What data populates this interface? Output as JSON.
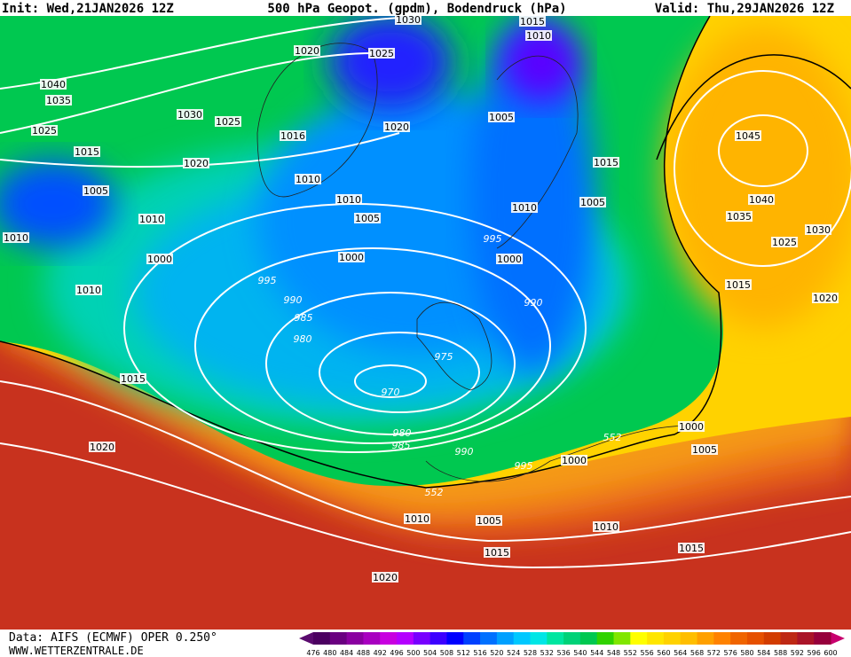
{
  "header": {
    "init": "Init: Wed,21JAN2026 12Z",
    "title": "500 hPa Geopot. (gpdm), Bodendruck (hPa)",
    "valid": "Valid: Thu,29JAN2026 12Z"
  },
  "footer": {
    "source": "Data: AIFS (ECMWF) OPER 0.250°",
    "website": "WWW.WETTERZENTRALE.DE"
  },
  "colorbar": {
    "labels": [
      476,
      480,
      484,
      488,
      492,
      496,
      500,
      504,
      508,
      512,
      516,
      520,
      524,
      528,
      532,
      536,
      540,
      544,
      548,
      552,
      556,
      560,
      564,
      568,
      572,
      576,
      580,
      584,
      588,
      592,
      596,
      600
    ],
    "colors": [
      "#4b0060",
      "#6a0080",
      "#8a00a0",
      "#a800c0",
      "#c800e0",
      "#b400ff",
      "#7800ff",
      "#3c00ff",
      "#0000ff",
      "#0040ff",
      "#0070ff",
      "#00a0ff",
      "#00c8ff",
      "#00e6e6",
      "#00e6a0",
      "#00d278",
      "#00c850",
      "#30d200",
      "#80e600",
      "#ffff00",
      "#ffe600",
      "#ffd200",
      "#ffbe00",
      "#ffa000",
      "#ff8200",
      "#f06400",
      "#e65000",
      "#d23c00",
      "#be2814",
      "#aa1428",
      "#96003c"
    ],
    "low_color": "#5a0a6e",
    "high_color": "#c8006e"
  },
  "isobar_labels": [
    1030,
    1015,
    1010,
    1020,
    1025,
    1040,
    1035,
    1030,
    1025,
    1005,
    1020,
    1025,
    1016,
    1045,
    1015,
    1015,
    1020,
    1010,
    1005,
    1010,
    1040,
    1005,
    1010,
    1010,
    1005,
    1035,
    1010,
    995,
    1030,
    1025,
    1000,
    1000,
    1000,
    995,
    1015,
    1010,
    990,
    990,
    1020,
    985,
    980,
    975,
    1015,
    970,
    980,
    552,
    1000,
    985,
    1020,
    1005,
    990,
    1000,
    995,
    552,
    1010,
    1005,
    1010,
    1015,
    1015,
    1020
  ]
}
